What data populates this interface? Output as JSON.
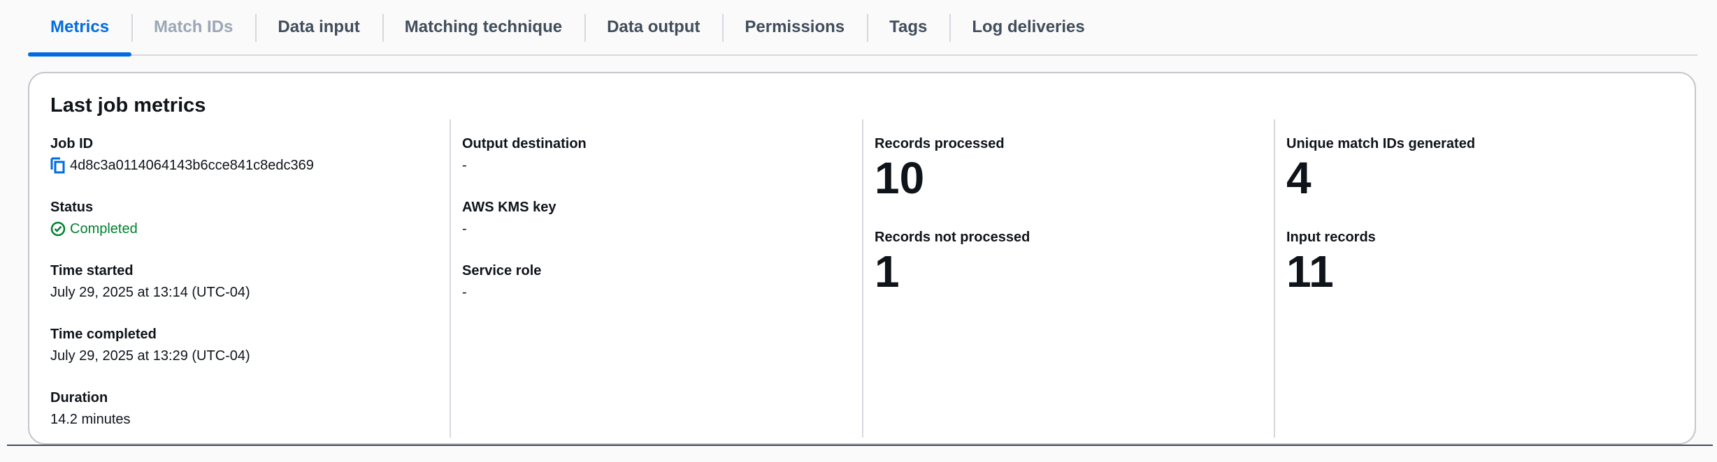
{
  "tabs": [
    {
      "label": "Metrics",
      "state": "active"
    },
    {
      "label": "Match IDs",
      "state": "disabled"
    },
    {
      "label": "Data input",
      "state": "normal"
    },
    {
      "label": "Matching technique",
      "state": "normal"
    },
    {
      "label": "Data output",
      "state": "normal"
    },
    {
      "label": "Permissions",
      "state": "normal"
    },
    {
      "label": "Tags",
      "state": "normal"
    },
    {
      "label": "Log deliveries",
      "state": "normal"
    }
  ],
  "card": {
    "title": "Last job metrics",
    "job_id": {
      "label": "Job ID",
      "value": "4d8c3a0114064143b6cce841c8edc369",
      "icon": "copy-icon"
    },
    "status": {
      "label": "Status",
      "value": "Completed",
      "icon": "check-circle-icon",
      "color": "#00802f"
    },
    "time_started": {
      "label": "Time started",
      "value": "July 29, 2025 at 13:14 (UTC-04)"
    },
    "time_completed": {
      "label": "Time completed",
      "value": "July 29, 2025 at 13:29 (UTC-04)"
    },
    "duration": {
      "label": "Duration",
      "value": "14.2 minutes"
    },
    "output_destination": {
      "label": "Output destination",
      "value": "-"
    },
    "kms_key": {
      "label": "AWS KMS key",
      "value": "-"
    },
    "service_role": {
      "label": "Service role",
      "value": "-"
    },
    "records_processed": {
      "label": "Records processed",
      "value": "10"
    },
    "records_not_processed": {
      "label": "Records not processed",
      "value": "1"
    },
    "unique_match_ids": {
      "label": "Unique match IDs generated",
      "value": "4"
    },
    "input_records": {
      "label": "Input records",
      "value": "11"
    }
  },
  "colors": {
    "accent": "#006ce0",
    "success": "#00802f"
  }
}
